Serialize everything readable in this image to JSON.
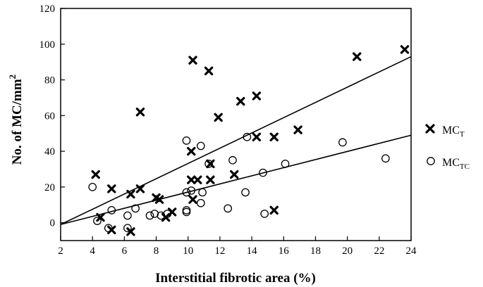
{
  "chart_data": {
    "type": "scatter",
    "xlabel": "Interstitial fibrotic area (%)",
    "ylabel_main": "No. of MC/mm",
    "ylabel_sup": "2",
    "xlim": [
      2,
      24
    ],
    "ylim": [
      -10,
      120
    ],
    "x_ticks": [
      "2",
      "4",
      "6",
      "8",
      "10",
      "12",
      "14",
      "16",
      "18",
      "20",
      "22",
      "24"
    ],
    "y_ticks": [
      "0",
      "20",
      "40",
      "60",
      "80",
      "100",
      "120"
    ],
    "grid": false,
    "legend_position": "right",
    "series": [
      {
        "name": "MC_T",
        "legend_main": "MC",
        "legend_sub": "T",
        "marker": "x",
        "points": [
          [
            4.2,
            27
          ],
          [
            4.5,
            3
          ],
          [
            5.2,
            19
          ],
          [
            5.2,
            -4
          ],
          [
            6.4,
            16
          ],
          [
            6.4,
            -5
          ],
          [
            7.0,
            62
          ],
          [
            7.0,
            19
          ],
          [
            8.0,
            14
          ],
          [
            8.2,
            13
          ],
          [
            8.6,
            3
          ],
          [
            9.0,
            6
          ],
          [
            10.2,
            40
          ],
          [
            10.2,
            24
          ],
          [
            10.3,
            91
          ],
          [
            10.3,
            13
          ],
          [
            10.6,
            24
          ],
          [
            11.3,
            85
          ],
          [
            11.4,
            33
          ],
          [
            11.4,
            24
          ],
          [
            11.9,
            59
          ],
          [
            12.9,
            27
          ],
          [
            13.3,
            68
          ],
          [
            14.3,
            71
          ],
          [
            14.3,
            48
          ],
          [
            15.4,
            48
          ],
          [
            15.4,
            7
          ],
          [
            16.9,
            52
          ],
          [
            20.6,
            93
          ],
          [
            23.6,
            97
          ]
        ]
      },
      {
        "name": "MC_TC",
        "legend_main": "MC",
        "legend_sub": "TC",
        "marker": "o",
        "points": [
          [
            4.0,
            20
          ],
          [
            4.3,
            1
          ],
          [
            5.0,
            -3
          ],
          [
            5.2,
            7
          ],
          [
            6.2,
            4
          ],
          [
            6.2,
            -3
          ],
          [
            6.7,
            8
          ],
          [
            7.6,
            4
          ],
          [
            7.9,
            5
          ],
          [
            8.3,
            4
          ],
          [
            8.7,
            5
          ],
          [
            9.9,
            46
          ],
          [
            9.9,
            17
          ],
          [
            9.9,
            7
          ],
          [
            9.9,
            6
          ],
          [
            10.2,
            18
          ],
          [
            10.8,
            43
          ],
          [
            10.8,
            11
          ],
          [
            10.9,
            17
          ],
          [
            11.3,
            33
          ],
          [
            12.5,
            8
          ],
          [
            12.8,
            35
          ],
          [
            13.6,
            17
          ],
          [
            13.7,
            48
          ],
          [
            14.7,
            28
          ],
          [
            14.8,
            5
          ],
          [
            16.1,
            33
          ],
          [
            19.7,
            45
          ],
          [
            22.4,
            36
          ]
        ]
      }
    ],
    "fit_lines": [
      {
        "series": "MC_T",
        "x": [
          2,
          24
        ],
        "y": [
          -1,
          93
        ]
      },
      {
        "series": "MC_TC",
        "x": [
          2,
          24
        ],
        "y": [
          -1,
          49
        ]
      }
    ]
  }
}
